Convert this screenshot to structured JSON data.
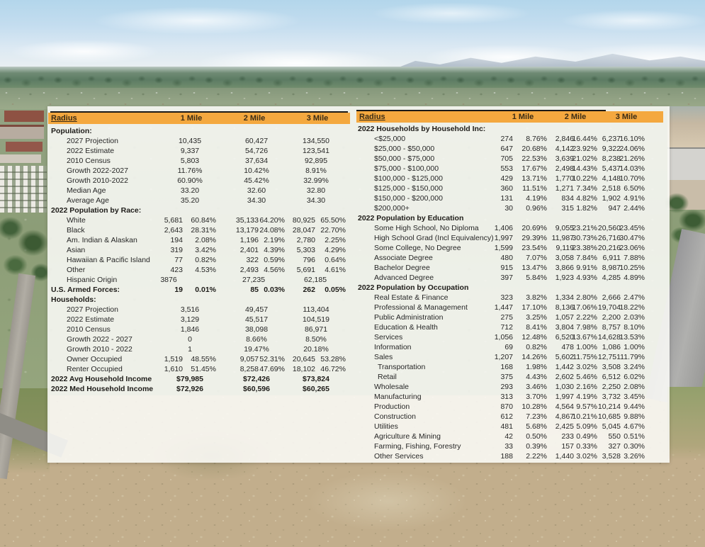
{
  "header": {
    "radius": "Radius",
    "cols": [
      "1 Mile",
      "2 Mile",
      "3 Mile"
    ]
  },
  "left_table": {
    "rows": [
      {
        "t": "sec",
        "label": "Population:"
      },
      {
        "t": "c3",
        "label": "2027 Projection",
        "v": [
          "10,435",
          "60,427",
          "134,550"
        ]
      },
      {
        "t": "c3",
        "label": "2022 Estimate",
        "v": [
          "9,337",
          "54,726",
          "123,541"
        ]
      },
      {
        "t": "c3",
        "label": "2010 Census",
        "v": [
          "5,803",
          "37,634",
          "92,895"
        ]
      },
      {
        "t": "c3",
        "label": "Growth 2022-2027",
        "v": [
          "11.76%",
          "10.42%",
          "8.91%"
        ]
      },
      {
        "t": "c3",
        "label": "Growth 2010-2022",
        "v": [
          "60.90%",
          "45.42%",
          "32.99%"
        ]
      },
      {
        "t": "c3",
        "label": "Median Age",
        "v": [
          "33.20",
          "32.60",
          "32.80"
        ]
      },
      {
        "t": "c3",
        "label": "Average Age",
        "v": [
          "35.20",
          "34.30",
          "34.30"
        ]
      },
      {
        "t": "sec",
        "label": "2022 Population by Race:"
      },
      {
        "t": "c6",
        "label": "White",
        "v": [
          "5,681",
          "60.84%",
          "35,133",
          "64.20%",
          "80,925",
          "65.50%"
        ]
      },
      {
        "t": "c6",
        "label": "Black",
        "v": [
          "2,643",
          "28.31%",
          "13,179",
          "24.08%",
          "28,047",
          "22.70%"
        ]
      },
      {
        "t": "c6",
        "label": "Am. Indian & Alaskan",
        "v": [
          "194",
          "2.08%",
          "1,196",
          "2.19%",
          "2,780",
          "2.25%"
        ]
      },
      {
        "t": "c6",
        "label": "Asian",
        "v": [
          "319",
          "3.42%",
          "2,401",
          "4.39%",
          "5,303",
          "4.29%"
        ]
      },
      {
        "t": "c6",
        "label": "Hawaiian & Pacific Island",
        "v": [
          "77",
          "0.82%",
          "322",
          "0.59%",
          "796",
          "0.64%"
        ]
      },
      {
        "t": "c6",
        "label": "Other",
        "v": [
          "423",
          "4.53%",
          "2,493",
          "4.56%",
          "5,691",
          "4.61%"
        ]
      },
      {
        "t": "c3l",
        "label": "Hispanic Origin",
        "v": [
          "3876",
          "27,235",
          "62,185"
        ]
      },
      {
        "t": "sec6",
        "label": "U.S. Armed Forces:",
        "v": [
          "19",
          "0.01%",
          "85",
          "0.03%",
          "262",
          "0.05%"
        ]
      },
      {
        "t": "sec",
        "label": "Households:"
      },
      {
        "t": "c3",
        "label": "2027 Projection",
        "v": [
          "3,516",
          "49,457",
          "113,404"
        ]
      },
      {
        "t": "c3",
        "label": "2022 Estimate",
        "v": [
          "3,129",
          "45,517",
          "104,519"
        ]
      },
      {
        "t": "c3",
        "label": "2010 Census",
        "v": [
          "1,846",
          "38,098",
          "86,971"
        ]
      },
      {
        "t": "c3",
        "label": "Growth 2022 - 2027",
        "v": [
          "0",
          "8.66%",
          "8.50%"
        ]
      },
      {
        "t": "c3",
        "label": "Growth 2010 - 2022",
        "v": [
          "1",
          "19.47%",
          "20.18%"
        ]
      },
      {
        "t": "c6",
        "label": "Owner Occupied",
        "v": [
          "1,519",
          "48.55%",
          "9,057",
          "52.31%",
          "20,645",
          "53.28%"
        ]
      },
      {
        "t": "c6",
        "label": "Renter Occupied",
        "v": [
          "1,610",
          "51.45%",
          "8,258",
          "47.69%",
          "18,102",
          "46.72%"
        ]
      },
      {
        "t": "sec3",
        "label": "2022 Avg Household Income",
        "v": [
          "$79,985",
          "$72,426",
          "$73,824"
        ]
      },
      {
        "t": "sec3",
        "label": "2022 Med Household Income",
        "v": [
          "$72,926",
          "$60,596",
          "$60,265"
        ]
      }
    ]
  },
  "right_table": {
    "rows": [
      {
        "t": "sec",
        "label": "2022 Households by Household Inc:"
      },
      {
        "t": "c6",
        "label": "<$25,000",
        "v": [
          "274",
          "8.76%",
          "2,846",
          "16.44%",
          "6,237",
          "16.10%"
        ]
      },
      {
        "t": "c6",
        "label": "$25,000 - $50,000",
        "v": [
          "647",
          "20.68%",
          "4,142",
          "23.92%",
          "9,322",
          "24.06%"
        ]
      },
      {
        "t": "c6",
        "label": "$50,000 - $75,000",
        "v": [
          "705",
          "22.53%",
          "3,639",
          "21.02%",
          "8,238",
          "21.26%"
        ]
      },
      {
        "t": "c6",
        "label": "$75,000 - $100,000",
        "v": [
          "553",
          "17.67%",
          "2,498",
          "14.43%",
          "5,437",
          "14.03%"
        ]
      },
      {
        "t": "c6",
        "label": "$100,000 - $125,000",
        "v": [
          "429",
          "13.71%",
          "1,770",
          "10.22%",
          "4,148",
          "10.70%"
        ]
      },
      {
        "t": "c6",
        "label": "$125,000 - $150,000",
        "v": [
          "360",
          "11.51%",
          "1,271",
          "7.34%",
          "2,518",
          "6.50%"
        ]
      },
      {
        "t": "c6",
        "label": "$150,000 - $200,000",
        "v": [
          "131",
          "4.19%",
          "834",
          "4.82%",
          "1,902",
          "4.91%"
        ]
      },
      {
        "t": "c6",
        "label": "$200,000+",
        "v": [
          "30",
          "0.96%",
          "315",
          "1.82%",
          "947",
          "2.44%"
        ]
      },
      {
        "t": "sec",
        "label": "2022 Population by Education"
      },
      {
        "t": "c6",
        "label": "Some High School, No Diploma",
        "v": [
          "1,406",
          "20.69%",
          "9,055",
          "23.21%",
          "20,560",
          "23.45%"
        ]
      },
      {
        "t": "c6",
        "label": "High School Grad (Incl Equivalency)",
        "v": [
          "1,997",
          "29.39%",
          "11,987",
          "30.73%",
          "26,716",
          "30.47%"
        ]
      },
      {
        "t": "c6",
        "label": "Some College, No Degree",
        "v": [
          "1,599",
          "23.54%",
          "9,119",
          "23.38%",
          "20,216",
          "23.06%"
        ]
      },
      {
        "t": "c6",
        "label": "Associate Degree",
        "v": [
          "480",
          "7.07%",
          "3,058",
          "7.84%",
          "6,911",
          "7.88%"
        ]
      },
      {
        "t": "c6",
        "label": "Bachelor Degree",
        "v": [
          "915",
          "13.47%",
          "3,866",
          "9.91%",
          "8,987",
          "10.25%"
        ]
      },
      {
        "t": "c6",
        "label": "Advanced Degree",
        "v": [
          "397",
          "5.84%",
          "1,923",
          "4.93%",
          "4,285",
          "4.89%"
        ]
      },
      {
        "t": "sec",
        "label": "2022 Population by Occupation"
      },
      {
        "t": "c6",
        "label": "Real Estate & Finance",
        "v": [
          "323",
          "3.82%",
          "1,334",
          "2.80%",
          "2,666",
          "2.47%"
        ]
      },
      {
        "t": "c6",
        "label": "Professional & Management",
        "v": [
          "1,447",
          "17.10%",
          "8,136",
          "17.06%",
          "19,704",
          "18.22%"
        ]
      },
      {
        "t": "c6",
        "label": "Public Administration",
        "v": [
          "275",
          "3.25%",
          "1,057",
          "2.22%",
          "2,200",
          "2.03%"
        ]
      },
      {
        "t": "c6",
        "label": "Education & Health",
        "v": [
          "712",
          "8.41%",
          "3,804",
          "7.98%",
          "8,757",
          "8.10%"
        ]
      },
      {
        "t": "c6",
        "label": "Services",
        "v": [
          "1,056",
          "12.48%",
          "6,520",
          "13.67%",
          "14,628",
          "13.53%"
        ]
      },
      {
        "t": "c6",
        "label": "Information",
        "v": [
          "69",
          "0.82%",
          "478",
          "1.00%",
          "1,086",
          "1.00%"
        ]
      },
      {
        "t": "c6",
        "label": "Sales",
        "v": [
          "1,207",
          "14.26%",
          "5,602",
          "11.75%",
          "12,751",
          "11.79%"
        ]
      },
      {
        "t": "c6",
        "label": "Transportation",
        "sub": true,
        "v": [
          "168",
          "1.98%",
          "1,442",
          "3.02%",
          "3,508",
          "3.24%"
        ]
      },
      {
        "t": "c6",
        "label": "Retail",
        "sub": true,
        "v": [
          "375",
          "4.43%",
          "2,602",
          "5.46%",
          "6,512",
          "6.02%"
        ]
      },
      {
        "t": "c6",
        "label": "Wholesale",
        "v": [
          "293",
          "3.46%",
          "1,030",
          "2.16%",
          "2,250",
          "2.08%"
        ]
      },
      {
        "t": "c6",
        "label": "Manufacturing",
        "v": [
          "313",
          "3.70%",
          "1,997",
          "4.19%",
          "3,732",
          "3.45%"
        ]
      },
      {
        "t": "c6",
        "label": "Production",
        "v": [
          "870",
          "10.28%",
          "4,564",
          "9.57%",
          "10,214",
          "9.44%"
        ]
      },
      {
        "t": "c6",
        "label": "Construction",
        "v": [
          "612",
          "7.23%",
          "4,867",
          "10.21%",
          "10,685",
          "9.88%"
        ]
      },
      {
        "t": "c6",
        "label": "Utilities",
        "v": [
          "481",
          "5.68%",
          "2,425",
          "5.09%",
          "5,045",
          "4.67%"
        ]
      },
      {
        "t": "c6",
        "label": "Agriculture & Mining",
        "v": [
          "42",
          "0.50%",
          "233",
          "0.49%",
          "550",
          "0.51%"
        ]
      },
      {
        "t": "c6",
        "label": "Farming, Fishing, Forestry",
        "v": [
          "33",
          "0.39%",
          "157",
          "0.33%",
          "327",
          "0.30%"
        ]
      },
      {
        "t": "c6",
        "label": "Other Services",
        "v": [
          "188",
          "2.22%",
          "1,440",
          "3.02%",
          "3,528",
          "3.26%"
        ]
      }
    ]
  },
  "colors": {
    "header_bar": "#f4a83f",
    "header_text": "#3a2c15",
    "rule": "#1c1a17"
  }
}
